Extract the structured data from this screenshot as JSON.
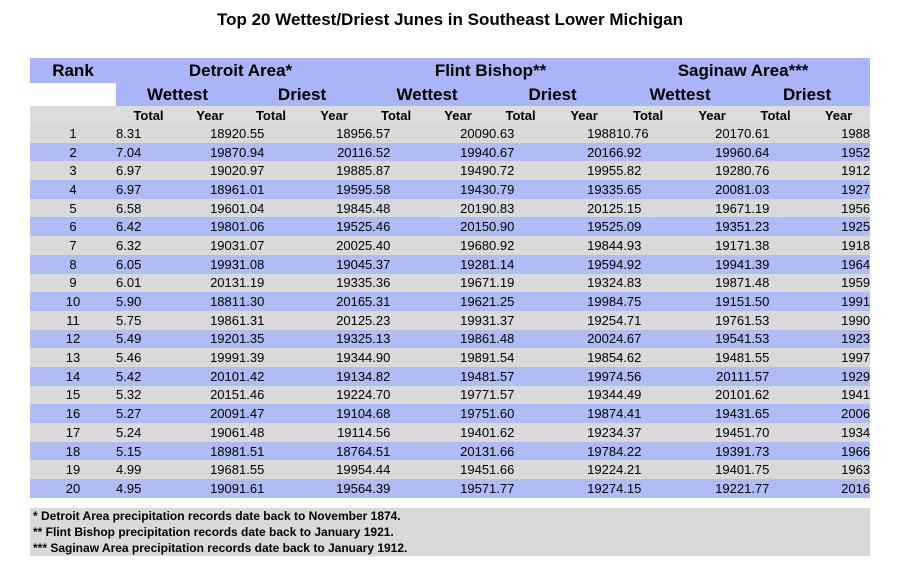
{
  "title": "Top 20 Wettest/Driest Junes in Southeast Lower Michigan",
  "header": {
    "rank": "Rank",
    "stations": [
      "Detroit Area*",
      "Flint Bishop**",
      "Saginaw Area***"
    ],
    "wettest": "Wettest",
    "driest": "Driest",
    "total": "Total",
    "year": "Year"
  },
  "rows": [
    [
      "1",
      "8.31",
      "1892",
      "0.55",
      "1895",
      "6.57",
      "2009",
      "0.63",
      "1988",
      "10.76",
      "2017",
      "0.61",
      "1988"
    ],
    [
      "2",
      "7.04",
      "1987",
      "0.94",
      "2011",
      "6.52",
      "1994",
      "0.67",
      "2016",
      "6.92",
      "1996",
      "0.64",
      "1952"
    ],
    [
      "3",
      "6.97",
      "1902",
      "0.97",
      "1988",
      "5.87",
      "1949",
      "0.72",
      "1995",
      "5.82",
      "1928",
      "0.76",
      "1912"
    ],
    [
      "4",
      "6.97",
      "1896",
      "1.01",
      "1959",
      "5.58",
      "1943",
      "0.79",
      "1933",
      "5.65",
      "2008",
      "1.03",
      "1927"
    ],
    [
      "5",
      "6.58",
      "1960",
      "1.04",
      "1984",
      "5.48",
      "2019",
      "0.83",
      "2012",
      "5.15",
      "1967",
      "1.19",
      "1956"
    ],
    [
      "6",
      "6.42",
      "1980",
      "1.06",
      "1952",
      "5.46",
      "2015",
      "0.90",
      "1952",
      "5.09",
      "1935",
      "1.23",
      "1925"
    ],
    [
      "7",
      "6.32",
      "1903",
      "1.07",
      "2002",
      "5.40",
      "1968",
      "0.92",
      "1984",
      "4.93",
      "1917",
      "1.38",
      "1918"
    ],
    [
      "8",
      "6.05",
      "1993",
      "1.08",
      "1904",
      "5.37",
      "1928",
      "1.14",
      "1959",
      "4.92",
      "1994",
      "1.39",
      "1964"
    ],
    [
      "9",
      "6.01",
      "2013",
      "1.19",
      "1933",
      "5.36",
      "1967",
      "1.19",
      "1932",
      "4.83",
      "1987",
      "1.48",
      "1959"
    ],
    [
      "10",
      "5.90",
      "1881",
      "1.30",
      "2016",
      "5.31",
      "1962",
      "1.25",
      "1998",
      "4.75",
      "1915",
      "1.50",
      "1991"
    ],
    [
      "11",
      "5.75",
      "1986",
      "1.31",
      "2012",
      "5.23",
      "1993",
      "1.37",
      "1925",
      "4.71",
      "1976",
      "1.53",
      "1990"
    ],
    [
      "12",
      "5.49",
      "1920",
      "1.35",
      "1932",
      "5.13",
      "1986",
      "1.48",
      "2002",
      "4.67",
      "1954",
      "1.53",
      "1923"
    ],
    [
      "13",
      "5.46",
      "1999",
      "1.39",
      "1934",
      "4.90",
      "1989",
      "1.54",
      "1985",
      "4.62",
      "1948",
      "1.55",
      "1997"
    ],
    [
      "14",
      "5.42",
      "2010",
      "1.42",
      "1913",
      "4.82",
      "1948",
      "1.57",
      "1997",
      "4.56",
      "2011",
      "1.57",
      "1929"
    ],
    [
      "15",
      "5.32",
      "2015",
      "1.46",
      "1922",
      "4.70",
      "1977",
      "1.57",
      "1934",
      "4.49",
      "2010",
      "1.62",
      "1941"
    ],
    [
      "16",
      "5.27",
      "2009",
      "1.47",
      "1910",
      "4.68",
      "1975",
      "1.60",
      "1987",
      "4.41",
      "1943",
      "1.65",
      "2006"
    ],
    [
      "17",
      "5.24",
      "1906",
      "1.48",
      "1911",
      "4.56",
      "1940",
      "1.62",
      "1923",
      "4.37",
      "1945",
      "1.70",
      "1934"
    ],
    [
      "18",
      "5.15",
      "1898",
      "1.51",
      "1876",
      "4.51",
      "2013",
      "1.66",
      "1978",
      "4.22",
      "1939",
      "1.73",
      "1966"
    ],
    [
      "19",
      "4.99",
      "1968",
      "1.55",
      "1995",
      "4.44",
      "1945",
      "1.66",
      "1922",
      "4.21",
      "1940",
      "1.75",
      "1963"
    ],
    [
      "20",
      "4.95",
      "1909",
      "1.61",
      "1956",
      "4.39",
      "1957",
      "1.77",
      "1927",
      "4.15",
      "1922",
      "1.77",
      "2016"
    ]
  ],
  "footnotes": [
    "* Detroit Area precipitation records date back to November 1874.",
    "** Flint Bishop precipitation records date back to January 1921.",
    "*** Saginaw Area precipitation records date back to January 1912."
  ]
}
